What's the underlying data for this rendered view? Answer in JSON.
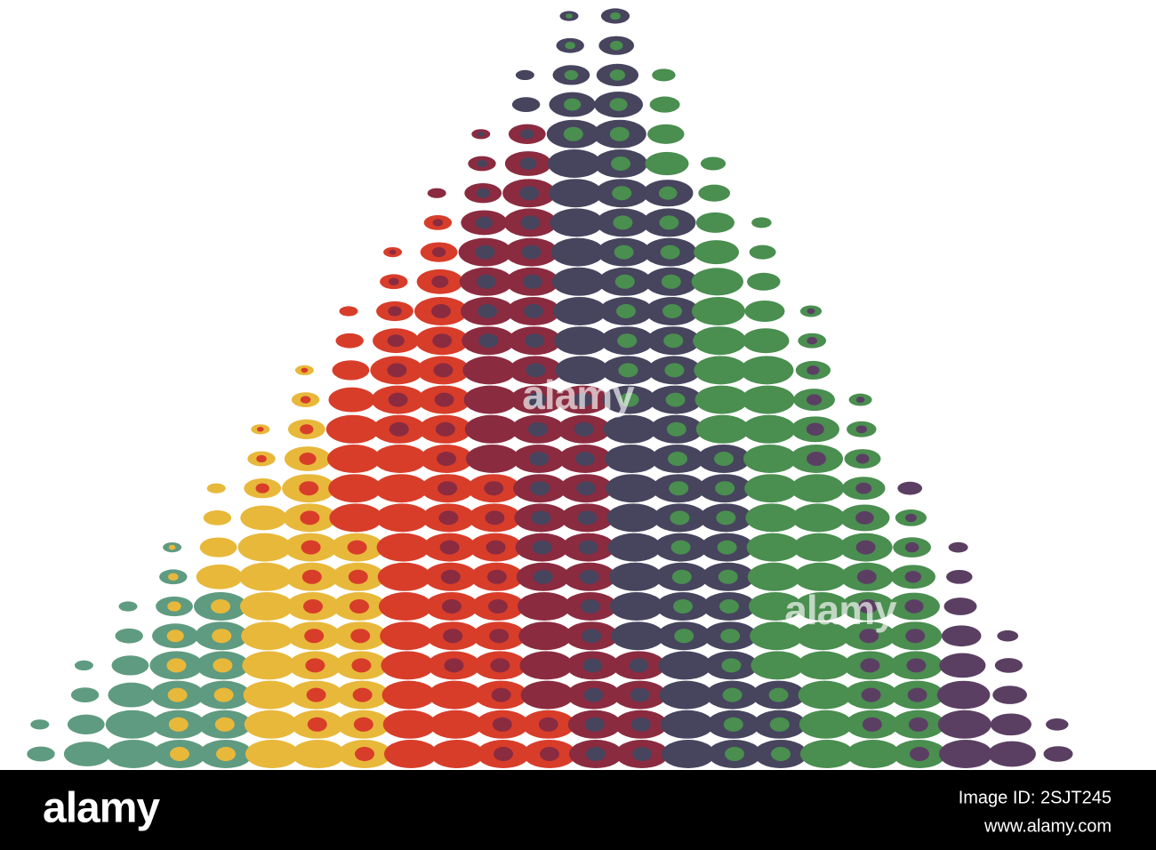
{
  "watermarks": [
    "alamy",
    "alamy"
  ],
  "footer": {
    "logo": "alamy",
    "image_id": "Image ID: 2SJT245",
    "url": "www.alamy.com"
  }
}
